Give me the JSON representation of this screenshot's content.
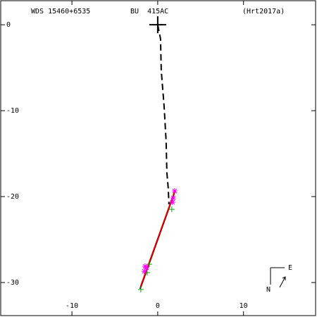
{
  "chart_data": {
    "type": "scatter",
    "header": [
      "WDS 15460+6535",
      "BU  415AC",
      "(Hrt2017a)"
    ],
    "compass": {
      "east": "E",
      "north": "N"
    },
    "xlim": [
      -18.3,
      18.4
    ],
    "ylim": [
      -33.85,
      2.8
    ],
    "xticks": [
      -10,
      0,
      10
    ],
    "yticks": [
      0,
      -10,
      -20,
      -30
    ],
    "series": [
      {
        "color": "#000000",
        "style": "dashed",
        "x": [
          0,
          0.33,
          0.41,
          0.74,
          0.98,
          1.07,
          1.23,
          1.31
        ],
        "y": [
          0,
          -1.64,
          -5.33,
          -9.43,
          -13.52,
          -17.21,
          -19.1,
          -20.9
        ]
      },
      {
        "color": "#000000",
        "style": "solid",
        "x": [
          2.05,
          -2.05
        ],
        "y": [
          -19.26,
          -30.74
        ]
      },
      {
        "color": "#e00000",
        "style": "solid",
        "x": [
          1.97,
          -2.0
        ],
        "y": [
          -19.4,
          -30.5
        ]
      },
      {
        "color": "#00aa00",
        "marker": "plus",
        "x": [
          1.64,
          -1.97,
          -1.23,
          -0.98
        ],
        "y": [
          -21.48,
          -30.82,
          -28.85,
          -27.87
        ]
      },
      {
        "color": "#ff00ff",
        "marker": "star",
        "x": [
          1.97,
          1.8,
          1.72,
          -1.48,
          -1.56,
          -1.31
        ],
        "y": [
          -19.34,
          -20.16,
          -20.66,
          -28.11,
          -28.69,
          -28.28
        ]
      },
      {
        "color": "#000000",
        "marker": "primary",
        "x": [
          0
        ],
        "y": [
          0
        ]
      }
    ]
  }
}
